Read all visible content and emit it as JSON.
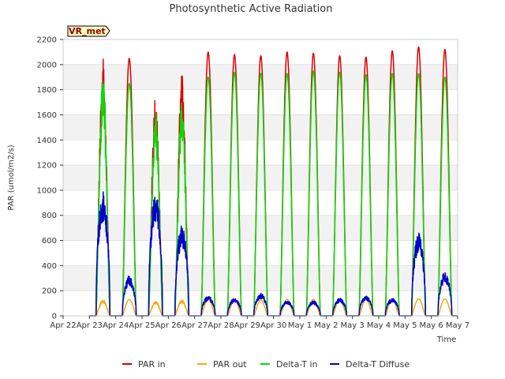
{
  "chart_data": {
    "type": "line",
    "title": "Photosynthetic Active Radiation",
    "xlabel": "Time",
    "ylabel": "PAR (umol/m2/s)",
    "ylim": [
      0,
      2200
    ],
    "yticks": [
      0,
      200,
      400,
      600,
      800,
      1000,
      1200,
      1400,
      1600,
      1800,
      2000,
      2200
    ],
    "xlim": [
      0,
      15
    ],
    "xticks": [
      "Apr 22",
      "Apr 23",
      "Apr 24",
      "Apr 25",
      "Apr 26",
      "Apr 27",
      "Apr 28",
      "Apr 29",
      "Apr 30",
      "May 1",
      "May 2",
      "May 3",
      "May 4",
      "May 5",
      "May 6",
      "May 7"
    ],
    "grid": "horizontal bands",
    "legend_position": "bottom",
    "badge": "VR_met",
    "days": [
      "Apr 23",
      "Apr 24",
      "Apr 25",
      "Apr 26",
      "Apr 27",
      "Apr 28",
      "Apr 29",
      "Apr 30",
      "May 1",
      "May 2",
      "May 3",
      "May 4",
      "May 5",
      "May 6"
    ],
    "series": [
      {
        "name": "PAR in",
        "color": "#dd0000",
        "daily_peak": [
          2050,
          2050,
          1790,
          1940,
          2100,
          2080,
          2070,
          2100,
          2090,
          2070,
          2060,
          2110,
          2140,
          2120
        ]
      },
      {
        "name": "PAR out",
        "color": "#ffa500",
        "daily_peak": [
          130,
          130,
          120,
          130,
          130,
          125,
          125,
          130,
          130,
          130,
          130,
          130,
          135,
          135
        ]
      },
      {
        "name": "Delta-T in",
        "color": "#00dd00",
        "daily_peak": [
          1920,
          1850,
          1650,
          1750,
          1900,
          1940,
          1930,
          1930,
          1950,
          1940,
          1920,
          1930,
          1930,
          1900
        ]
      },
      {
        "name": "Delta-T Diffuse",
        "color": "#0000cc",
        "daily_peak": [
          990,
          320,
          990,
          720,
          160,
          140,
          180,
          120,
          120,
          140,
          160,
          140,
          660,
          350
        ]
      }
    ]
  }
}
